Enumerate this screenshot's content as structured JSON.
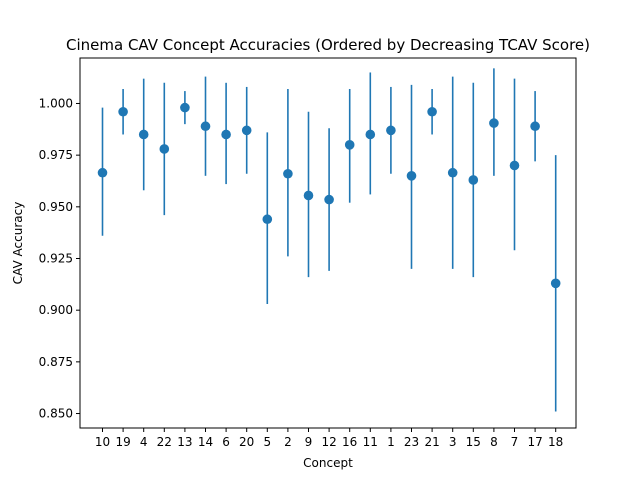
{
  "chart_data": {
    "type": "scatter",
    "title": "Cinema CAV Concept Accuracies (Ordered by Decreasing TCAV Score)",
    "xlabel": "Concept",
    "ylabel": "CAV Accuracy",
    "ylim": [
      0.843,
      1.022
    ],
    "yticks": [
      "0.850",
      "0.875",
      "0.900",
      "0.925",
      "0.950",
      "0.975",
      "1.000"
    ],
    "grid": false,
    "error_bars": true,
    "series_color": "#1f77b4",
    "categories": [
      "10",
      "19",
      "4",
      "22",
      "13",
      "14",
      "6",
      "20",
      "5",
      "2",
      "9",
      "12",
      "16",
      "11",
      "1",
      "23",
      "21",
      "3",
      "15",
      "8",
      "7",
      "17",
      "18"
    ],
    "values": [
      0.9665,
      0.996,
      0.985,
      0.978,
      0.998,
      0.989,
      0.985,
      0.987,
      0.944,
      0.966,
      0.9555,
      0.9535,
      0.98,
      0.985,
      0.987,
      0.965,
      0.996,
      0.9665,
      0.963,
      0.9905,
      0.97,
      0.989,
      0.913
    ],
    "lower": [
      0.936,
      0.985,
      0.958,
      0.946,
      0.99,
      0.965,
      0.961,
      0.966,
      0.903,
      0.926,
      0.916,
      0.919,
      0.952,
      0.956,
      0.966,
      0.92,
      0.985,
      0.92,
      0.916,
      0.965,
      0.929,
      0.972,
      0.851
    ],
    "upper": [
      0.998,
      1.007,
      1.012,
      1.01,
      1.006,
      1.013,
      1.01,
      1.008,
      0.986,
      1.007,
      0.996,
      0.988,
      1.007,
      1.015,
      1.008,
      1.009,
      1.007,
      1.013,
      1.01,
      1.017,
      1.012,
      1.006,
      0.975
    ]
  }
}
